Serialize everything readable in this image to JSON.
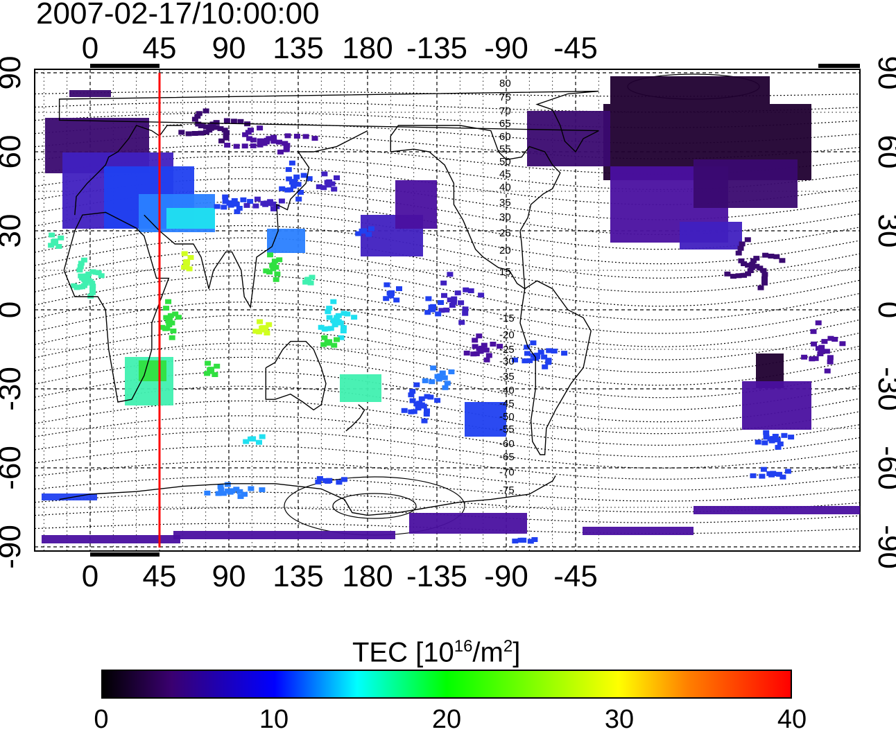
{
  "title": "2007-02-17/10:00:00",
  "map": {
    "top_lon_ticks": [
      "0",
      "45",
      "90",
      "135",
      "180",
      "-135",
      "-90",
      "-45"
    ],
    "bottom_lon_ticks": [
      "0",
      "45",
      "90",
      "135",
      "180",
      "-135",
      "-90",
      "-45"
    ],
    "left_lat_ticks": [
      "90",
      "60",
      "30",
      "0",
      "-30",
      "-60",
      "-90"
    ],
    "right_lat_ticks": [
      "90",
      "60",
      "30",
      "0",
      "-30",
      "-60",
      "-90"
    ],
    "contour_labels_north": [
      "80",
      "75",
      "70",
      "65",
      "60",
      "55",
      "50",
      "45",
      "40",
      "35",
      "30",
      "25",
      "20",
      "15"
    ],
    "contour_labels_south": [
      "15",
      "20",
      "25",
      "30",
      "35",
      "40",
      "45",
      "50",
      "55",
      "60",
      "65",
      "70",
      "75"
    ],
    "meridian_line_lon": 30,
    "meridian_line_color": "#ff0000"
  },
  "colorbar": {
    "label_main": "TEC  [10",
    "label_sup1": "16",
    "label_mid": "/m",
    "label_sup2": "2",
    "label_end": "]",
    "ticks": [
      "0",
      "10",
      "20",
      "30",
      "40"
    ],
    "range": [
      0,
      40
    ],
    "colors": [
      "#000000",
      "#3a0070",
      "#0000ff",
      "#00ffff",
      "#00ff00",
      "#ffff00",
      "#ff8000",
      "#ff0000"
    ]
  }
}
